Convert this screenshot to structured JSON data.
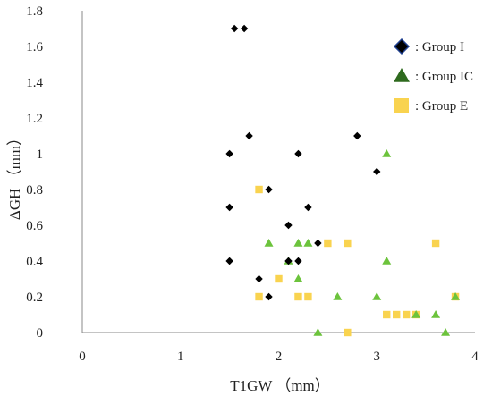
{
  "chart_data": {
    "type": "scatter",
    "title": "",
    "xlabel": "T1GW （mm）",
    "ylabel": "ΔGH （mm）",
    "xlim": [
      0,
      4
    ],
    "ylim": [
      0,
      1.8
    ],
    "xticks": [
      "0",
      "1",
      "2",
      "3",
      "4"
    ],
    "yticks": [
      "0",
      "0.2",
      "0.4",
      "0.6",
      "0.8",
      "1",
      "1.2",
      "1.4",
      "1.6",
      "1.8"
    ],
    "grid": false,
    "legend_position": "top-right",
    "series": [
      {
        "name": "Group I",
        "legend_label": ": Group I",
        "marker": "diamond",
        "color": "#000000",
        "points": [
          [
            1.55,
            1.7
          ],
          [
            1.65,
            1.7
          ],
          [
            1.7,
            1.1
          ],
          [
            1.5,
            1.0
          ],
          [
            2.2,
            1.0
          ],
          [
            2.8,
            1.1
          ],
          [
            3.0,
            0.9
          ],
          [
            1.9,
            0.8
          ],
          [
            1.5,
            0.7
          ],
          [
            2.3,
            0.7
          ],
          [
            2.1,
            0.6
          ],
          [
            2.4,
            0.5
          ],
          [
            1.5,
            0.4
          ],
          [
            2.1,
            0.4
          ],
          [
            2.2,
            0.4
          ],
          [
            1.8,
            0.3
          ],
          [
            1.9,
            0.2
          ]
        ]
      },
      {
        "name": "Group IC",
        "legend_label": ": Group IC",
        "marker": "triangle",
        "color": "#6cc33c",
        "points": [
          [
            3.1,
            1.0
          ],
          [
            1.9,
            0.5
          ],
          [
            2.2,
            0.5
          ],
          [
            2.3,
            0.5
          ],
          [
            2.1,
            0.4
          ],
          [
            3.1,
            0.4
          ],
          [
            2.2,
            0.3
          ],
          [
            2.6,
            0.2
          ],
          [
            3.0,
            0.2
          ],
          [
            3.8,
            0.2
          ],
          [
            3.4,
            0.1
          ],
          [
            3.6,
            0.1
          ],
          [
            2.4,
            0.0
          ],
          [
            3.7,
            0.0
          ]
        ]
      },
      {
        "name": "Group E",
        "legend_label": ": Group E",
        "marker": "square",
        "color": "#f9d34f",
        "points": [
          [
            1.8,
            0.8
          ],
          [
            2.5,
            0.5
          ],
          [
            2.7,
            0.5
          ],
          [
            3.6,
            0.5
          ],
          [
            2.0,
            0.3
          ],
          [
            1.8,
            0.2
          ],
          [
            2.2,
            0.2
          ],
          [
            2.3,
            0.2
          ],
          [
            3.8,
            0.2
          ],
          [
            3.1,
            0.1
          ],
          [
            3.2,
            0.1
          ],
          [
            3.3,
            0.1
          ],
          [
            3.4,
            0.1
          ],
          [
            2.7,
            0.0
          ]
        ]
      }
    ],
    "legend_marker_colors": {
      "diamond_fill": "#000000",
      "diamond_stroke": "#1f3f8f",
      "triangle_fill": "#2e6a1e",
      "square_fill": "#f9d34f"
    }
  }
}
